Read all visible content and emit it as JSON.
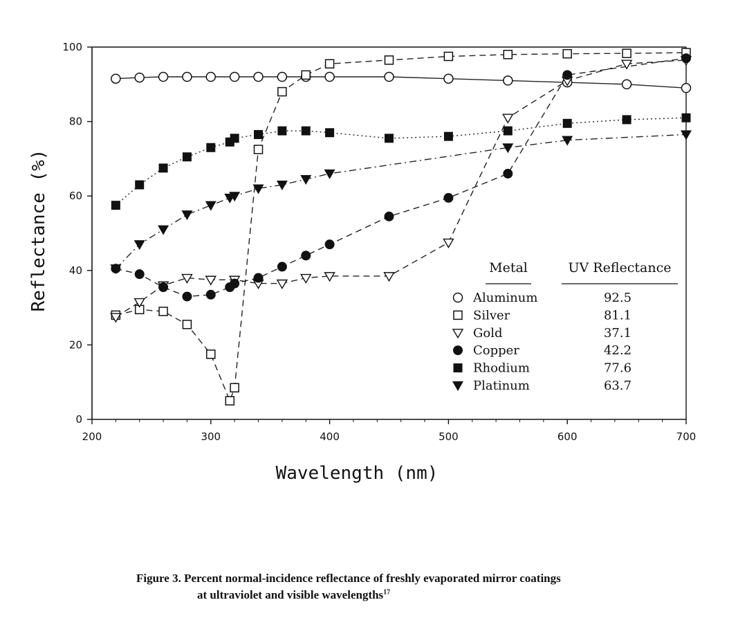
{
  "chart_data": {
    "type": "line",
    "xlabel": "Wavelength (nm)",
    "ylabel": "Reflectance (%)",
    "xlim": [
      200,
      700
    ],
    "ylim": [
      0,
      100
    ],
    "xticks": [
      "200",
      "300",
      "400",
      "500",
      "600",
      "700"
    ],
    "yticks": [
      "0",
      "20",
      "40",
      "60",
      "80",
      "100"
    ],
    "grid": false,
    "legend": {
      "placement": "lower-right",
      "header_metal": "Metal",
      "header_uv": "UV Reflectance"
    },
    "series": [
      {
        "name": "Aluminum",
        "uv_reflectance": "92.5",
        "marker": "open-circle",
        "line": "solid",
        "x": [
          220,
          240,
          260,
          280,
          300,
          320,
          340,
          360,
          380,
          400,
          450,
          500,
          550,
          600,
          650,
          700
        ],
        "y": [
          91.5,
          91.8,
          92,
          92,
          92,
          92,
          92,
          92,
          92,
          92,
          92,
          91.5,
          91,
          90.5,
          90,
          89
        ]
      },
      {
        "name": "Silver",
        "uv_reflectance": "81.1",
        "marker": "open-square",
        "line": "dashed",
        "x": [
          220,
          240,
          260,
          280,
          300,
          316,
          320,
          340,
          360,
          380,
          400,
          450,
          500,
          550,
          600,
          650,
          700
        ],
        "y": [
          28,
          29.5,
          29,
          25.5,
          17.5,
          5,
          8.5,
          72.5,
          88,
          92.5,
          95.5,
          96.5,
          97.5,
          98,
          98.2,
          98.3,
          98.5
        ]
      },
      {
        "name": "Gold",
        "uv_reflectance": "37.1",
        "marker": "open-triangle-down",
        "line": "dashed",
        "x": [
          220,
          240,
          260,
          280,
          300,
          320,
          340,
          360,
          380,
          400,
          450,
          500,
          550,
          600,
          650,
          700
        ],
        "y": [
          27.5,
          31.5,
          36,
          38,
          37.5,
          37.5,
          36.5,
          36.5,
          38,
          38.5,
          38.5,
          47.5,
          81,
          91,
          95.5,
          96.5
        ]
      },
      {
        "name": "Copper",
        "uv_reflectance": "42.2",
        "marker": "filled-circle",
        "line": "dashed",
        "x": [
          220,
          240,
          260,
          280,
          300,
          316,
          320,
          340,
          360,
          380,
          400,
          450,
          500,
          550,
          600,
          700
        ],
        "y": [
          40.5,
          39,
          35.5,
          33,
          33.5,
          35.5,
          36.5,
          38,
          41,
          44,
          47,
          54.5,
          59.5,
          66,
          92.5,
          97
        ]
      },
      {
        "name": "Rhodium",
        "uv_reflectance": "77.6",
        "marker": "filled-square",
        "line": "dotted",
        "x": [
          220,
          240,
          260,
          280,
          300,
          316,
          320,
          340,
          360,
          380,
          400,
          450,
          500,
          550,
          600,
          650,
          700
        ],
        "y": [
          57.5,
          63,
          67.5,
          70.5,
          73,
          74.5,
          75.5,
          76.5,
          77.5,
          77.5,
          77,
          75.5,
          76,
          77.5,
          79.5,
          80.5,
          81
        ]
      },
      {
        "name": "Platinum",
        "uv_reflectance": "63.7",
        "marker": "filled-triangle-down",
        "line": "dash-dot",
        "x": [
          220,
          240,
          260,
          280,
          300,
          316,
          320,
          340,
          360,
          380,
          400,
          550,
          600,
          700
        ],
        "y": [
          40.5,
          47,
          51,
          55,
          57.5,
          59.5,
          60,
          62,
          63,
          64.5,
          66,
          73,
          75,
          76.5
        ]
      }
    ]
  },
  "caption": {
    "line1": "Figure 3.  Percent normal-incidence reflectance of freshly evaporated mirror coatings",
    "line2": "at ultraviolet and visible wavelengths",
    "superscript": "17"
  }
}
